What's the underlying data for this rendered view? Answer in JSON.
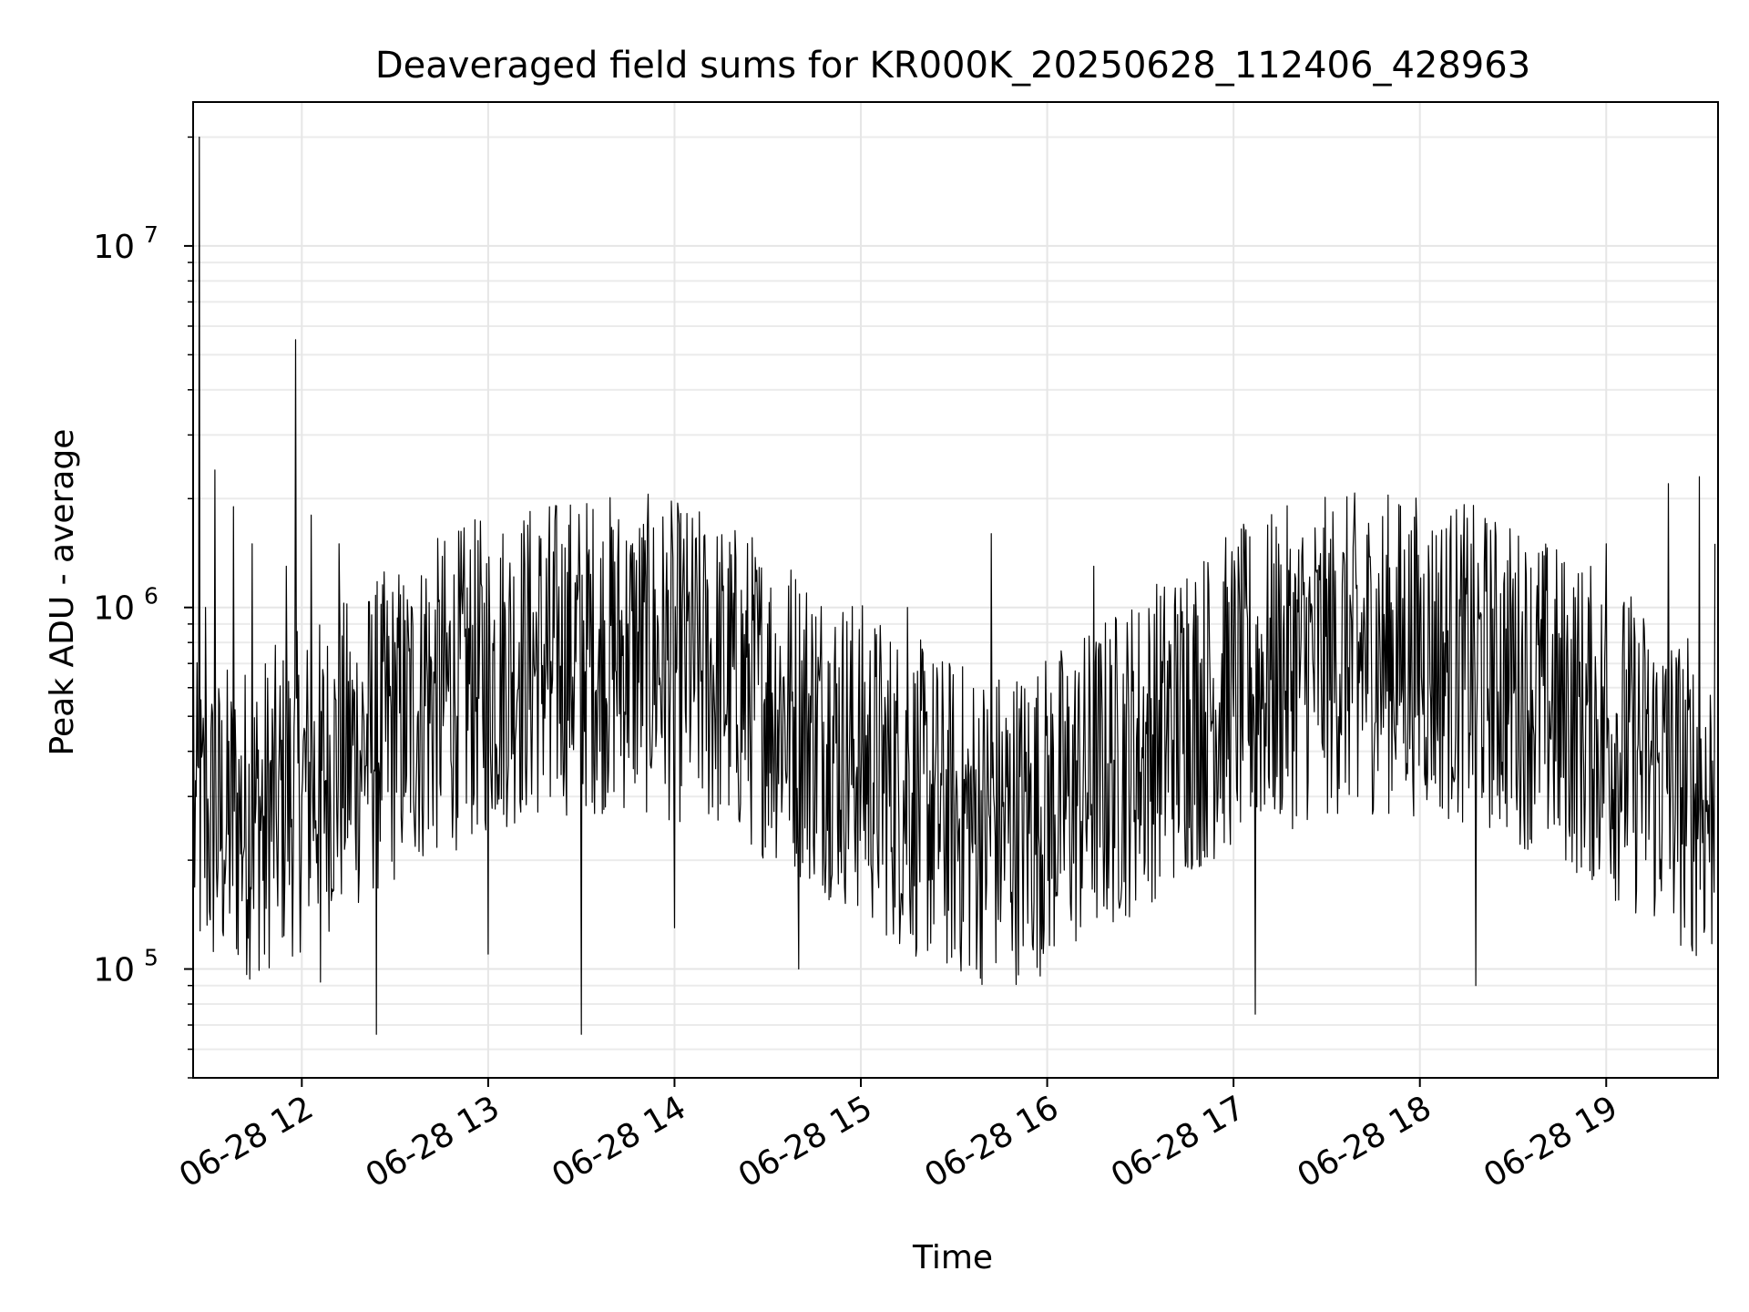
{
  "chart_data": {
    "type": "line",
    "title": "Deaveraged field sums for KR000K_20250628_112406_428963",
    "xlabel": "Time",
    "ylabel": "Peak ADU - average",
    "yscale": "log",
    "ylim": [
      50000,
      25000000
    ],
    "xlim": [
      "2025-06-28 11:25",
      "2025-06-28 19:36"
    ],
    "grid": true,
    "x_tick_labels": [
      "06-28 12",
      "06-28 13",
      "06-28 14",
      "06-28 15",
      "06-28 16",
      "06-28 17",
      "06-28 18",
      "06-28 19"
    ],
    "y_tick_labels": [
      {
        "base": "10",
        "exp": "5",
        "value": 100000
      },
      {
        "base": "10",
        "exp": "6",
        "value": 1000000
      },
      {
        "base": "10",
        "exp": "7",
        "value": 10000000
      }
    ],
    "line_color": "#000000",
    "series": [
      {
        "x": [
          "2025-06-28 11:25",
          "2025-06-28 11:26",
          "2025-06-28 11:27",
          "2025-06-28 11:28",
          "2025-06-28 11:29",
          "2025-06-28 11:30",
          "2025-06-28 11:32",
          "2025-06-28 11:35",
          "2025-06-28 11:38",
          "2025-06-28 11:40",
          "2025-06-28 11:44",
          "2025-06-28 11:48",
          "2025-06-28 11:52",
          "2025-06-28 11:55",
          "2025-06-28 11:58",
          "2025-06-28 12:00",
          "2025-06-28 12:03",
          "2025-06-28 12:06",
          "2025-06-28 12:12",
          "2025-06-28 12:18",
          "2025-06-28 12:24",
          "2025-06-28 12:30",
          "2025-06-28 12:33",
          "2025-06-28 12:40",
          "2025-06-28 12:50",
          "2025-06-28 13:00",
          "2025-06-28 13:10",
          "2025-06-28 13:20",
          "2025-06-28 13:30",
          "2025-06-28 13:36",
          "2025-06-28 13:45",
          "2025-06-28 14:00",
          "2025-06-28 14:10",
          "2025-06-28 14:20",
          "2025-06-28 14:30",
          "2025-06-28 14:40",
          "2025-06-28 14:50",
          "2025-06-28 15:00",
          "2025-06-28 15:15",
          "2025-06-28 15:30",
          "2025-06-28 15:42",
          "2025-06-28 16:00",
          "2025-06-28 16:15",
          "2025-06-28 16:30",
          "2025-06-28 16:45",
          "2025-06-28 17:00",
          "2025-06-28 17:07",
          "2025-06-28 17:20",
          "2025-06-28 17:40",
          "2025-06-28 18:00",
          "2025-06-28 18:18",
          "2025-06-28 18:30",
          "2025-06-28 18:45",
          "2025-06-28 19:00",
          "2025-06-28 19:10",
          "2025-06-28 19:20",
          "2025-06-28 19:25",
          "2025-06-28 19:30",
          "2025-06-28 19:35"
        ],
        "values": [
          1600000,
          300000,
          20000000,
          400000,
          1000000,
          250000,
          2400000,
          200000,
          1900000,
          300000,
          1500000,
          110000,
          200000,
          1300000,
          5500000,
          300000,
          1800000,
          92000,
          1500000,
          400000,
          66000,
          800000,
          300000,
          1200000,
          500000,
          110000,
          800000,
          300000,
          66000,
          400000,
          900000,
          130000,
          1200000,
          350000,
          900000,
          100000,
          700000,
          300000,
          1000000,
          200000,
          1600000,
          500000,
          1300000,
          350000,
          1200000,
          500000,
          75000,
          1200000,
          300000,
          1000000,
          90000,
          1200000,
          250000,
          1500000,
          400000,
          2200000,
          180000,
          2300000,
          1500000
        ]
      }
    ]
  }
}
